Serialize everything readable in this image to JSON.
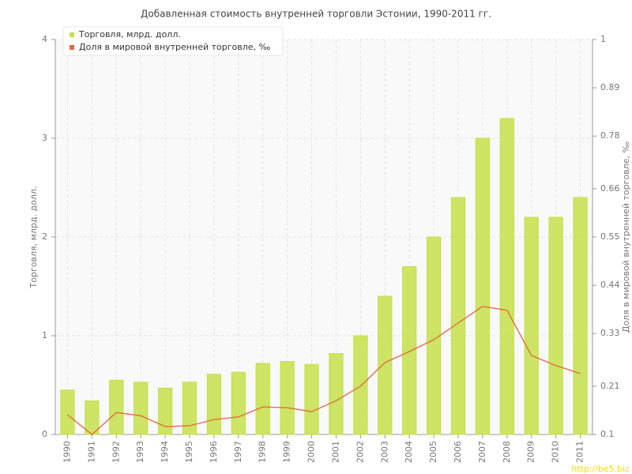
{
  "chart_data": {
    "type": "bar-line",
    "title": "Добавленная стоимость внутренней торговли Эстонии, 1990-2011 гг.",
    "y_label": "Торговля, млрд. долл.",
    "y2_label": "Доля в мировой внутренней торговле, ‰",
    "categories": [
      "1990",
      "1991",
      "1992",
      "1993",
      "1994",
      "1995",
      "1996",
      "1997",
      "1998",
      "1999",
      "2000",
      "2001",
      "2002",
      "2003",
      "2004",
      "2005",
      "2006",
      "2007",
      "2008",
      "2009",
      "2010",
      "2011"
    ],
    "series": [
      {
        "name": "Торговля, млрд. долл.",
        "type": "bar",
        "color": "#c5e04a",
        "values": [
          0.45,
          0.34,
          0.55,
          0.53,
          0.47,
          0.53,
          0.61,
          0.63,
          0.72,
          0.74,
          0.71,
          0.82,
          1.0,
          1.4,
          1.7,
          2.0,
          2.4,
          3.0,
          3.2,
          2.2,
          2.2,
          2.4
        ]
      },
      {
        "name": "Доля в мировой внутренней торговле, ‰",
        "type": "line",
        "color": "#e0683c",
        "axis": "y2",
        "values": [
          0.145,
          0.1,
          0.15,
          0.143,
          0.118,
          0.12,
          0.134,
          0.14,
          0.163,
          0.161,
          0.152,
          0.177,
          0.21,
          0.264,
          0.289,
          0.316,
          0.354,
          0.392,
          0.383,
          0.28,
          0.257,
          0.239
        ]
      }
    ],
    "ylim": [
      0,
      4
    ],
    "yticks": [
      0,
      1,
      2,
      3,
      4
    ],
    "y2lim": [
      0.1,
      1
    ],
    "y2ticks": [
      0.1,
      0.21,
      0.33,
      0.44,
      0.55,
      0.66,
      0.78,
      0.89,
      1
    ],
    "grid": true,
    "legend": "top-left",
    "watermark": "http://be5.biz"
  }
}
